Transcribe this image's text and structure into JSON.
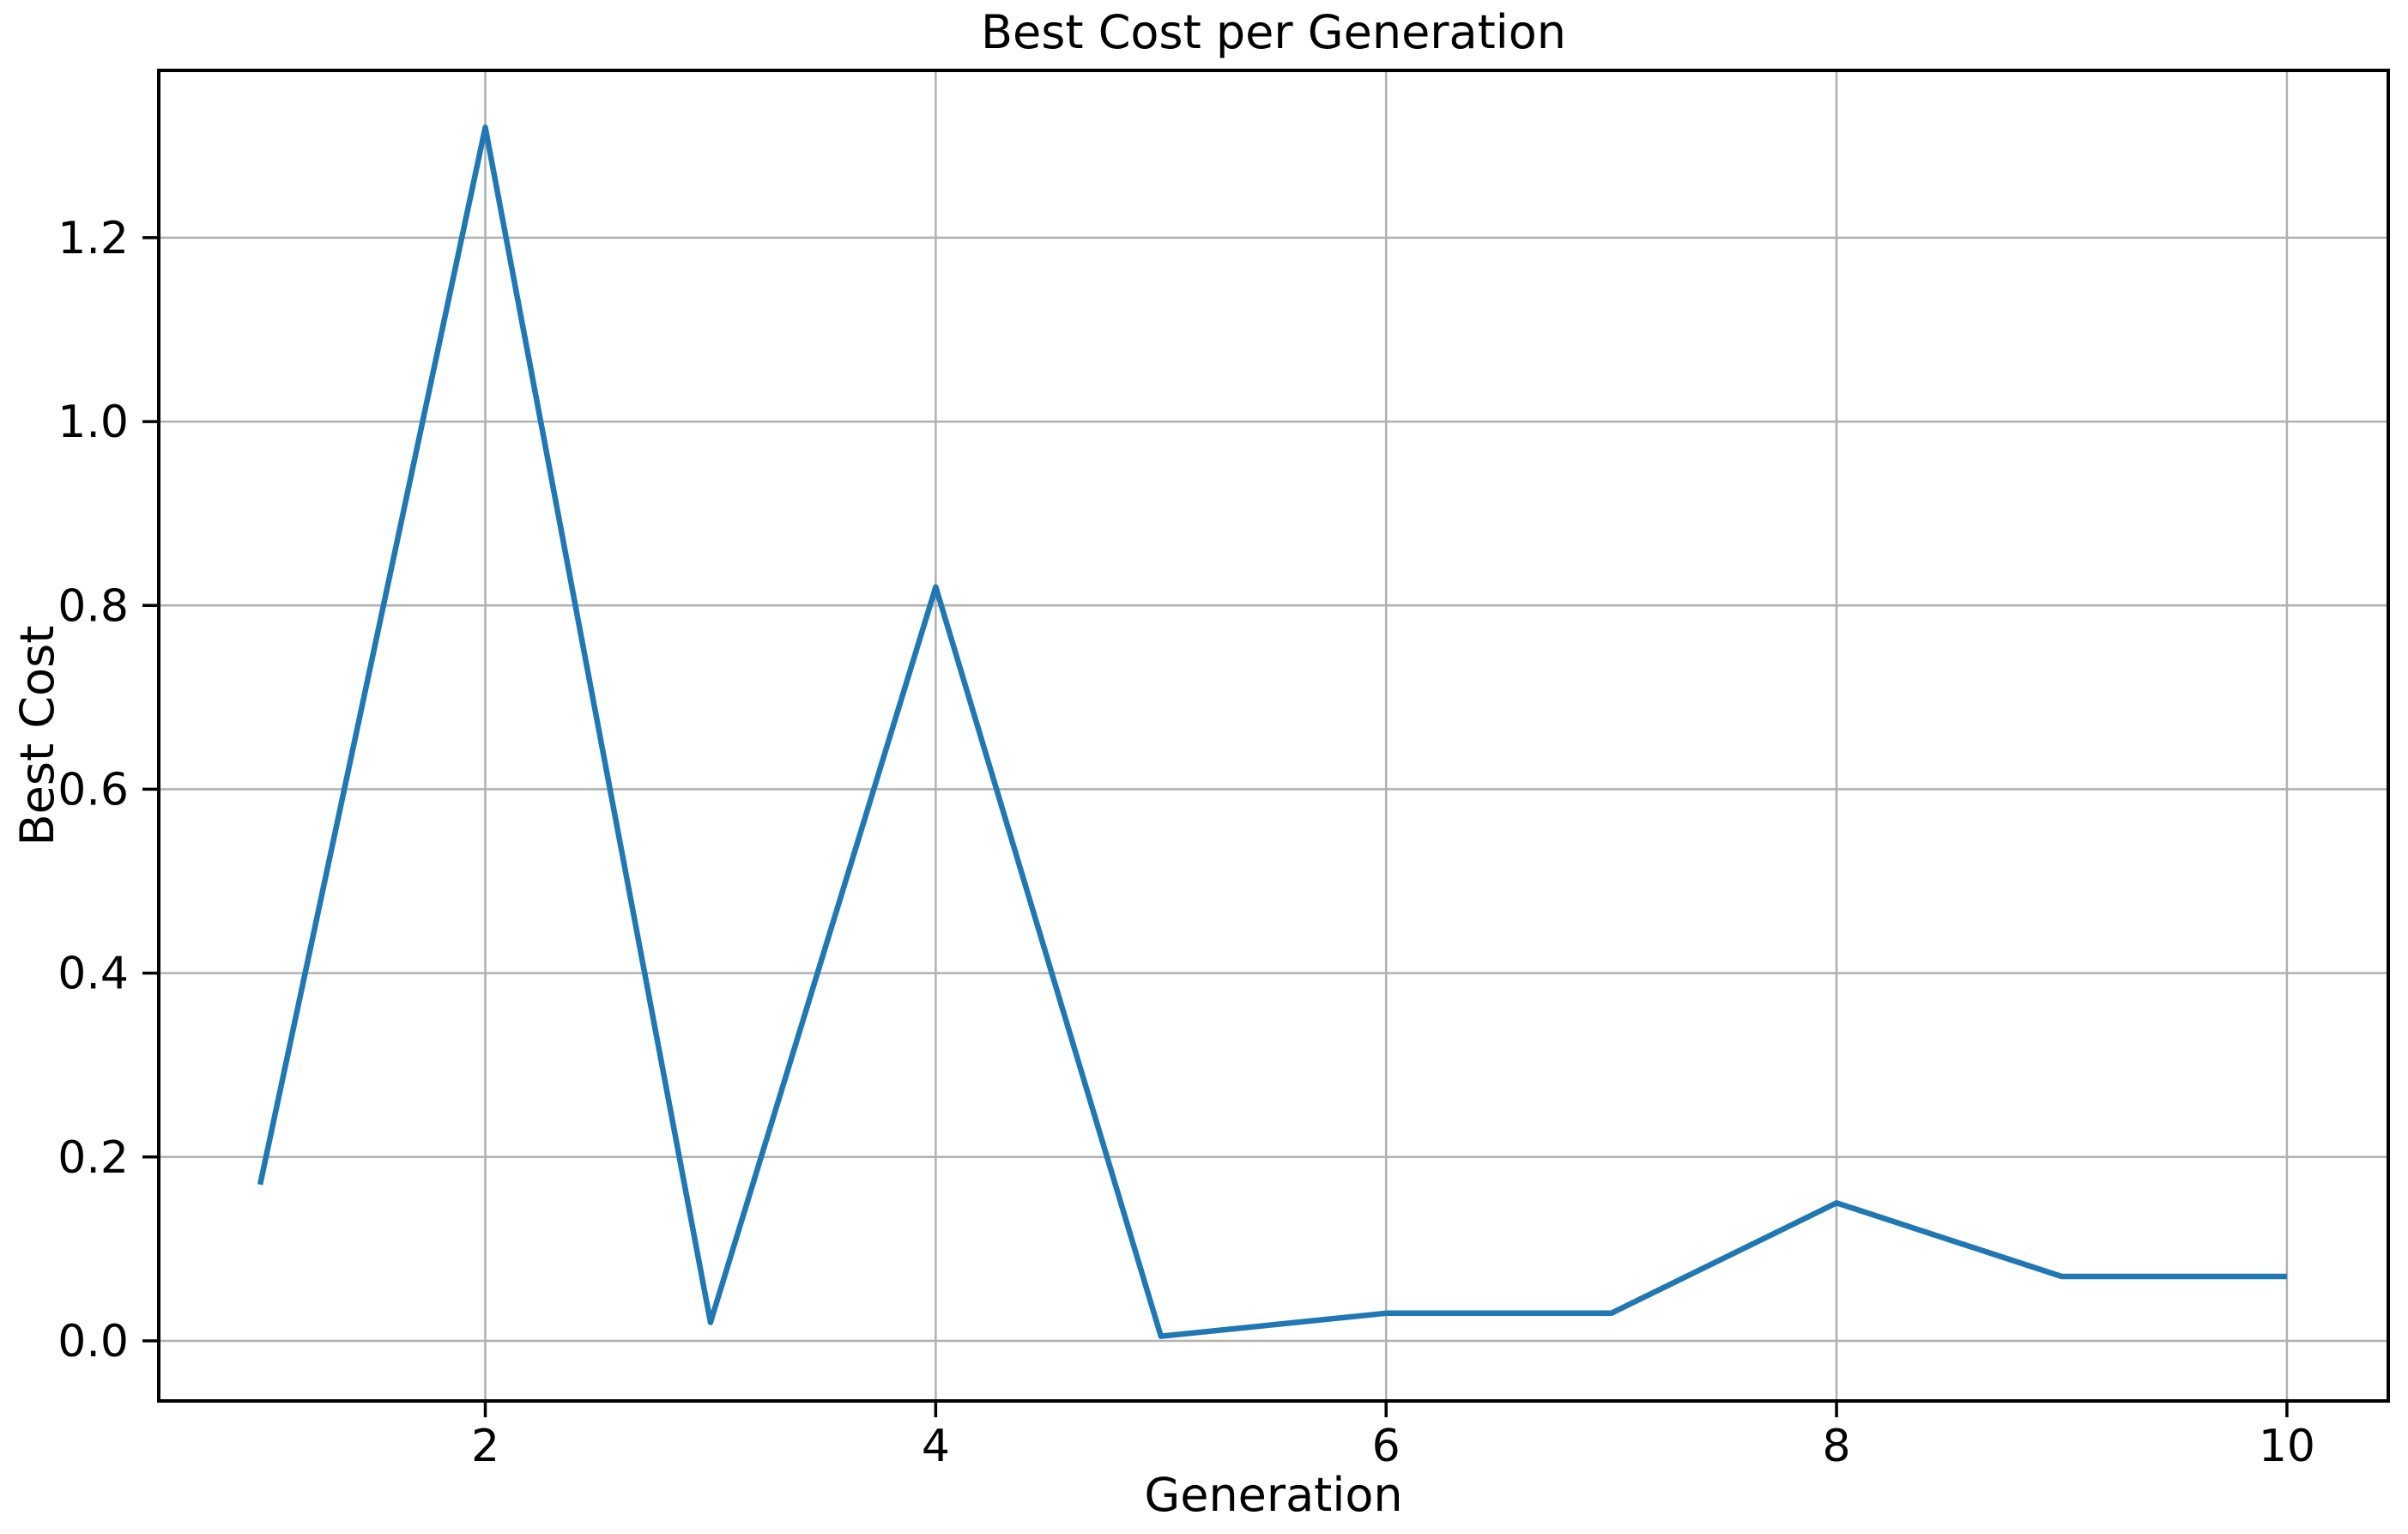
{
  "figure": {
    "title": "Best Cost per Generation",
    "xlabel": "Generation",
    "ylabel": "Best Cost"
  },
  "chart_data": {
    "type": "line",
    "title": "Best Cost per Generation",
    "xlabel": "Generation",
    "ylabel": "Best Cost",
    "x": [
      1,
      2,
      3,
      4,
      5,
      6,
      7,
      8,
      9,
      10
    ],
    "y": [
      0.17,
      1.32,
      0.02,
      0.82,
      0.005,
      0.03,
      0.03,
      0.15,
      0.07,
      0.07
    ],
    "series": [
      {
        "name": "Best Cost",
        "x": [
          1,
          2,
          3,
          4,
          5,
          6,
          7,
          8,
          9,
          10
        ],
        "values": [
          0.17,
          1.32,
          0.02,
          0.82,
          0.005,
          0.03,
          0.03,
          0.15,
          0.07,
          0.07
        ]
      }
    ],
    "xticks": [
      2,
      4,
      6,
      8,
      10
    ],
    "xtick_labels": [
      "2",
      "4",
      "6",
      "8",
      "10"
    ],
    "yticks": [
      0.0,
      0.2,
      0.4,
      0.6,
      0.8,
      1.0,
      1.2
    ],
    "ytick_labels": [
      "0.0",
      "0.2",
      "0.4",
      "0.6",
      "0.8",
      "1.0",
      "1.2"
    ],
    "xlim": [
      0.55,
      10.45
    ],
    "ylim": [
      -0.0654,
      1.382
    ],
    "grid": true,
    "legend_position": "none",
    "line_color": "#1f77b4",
    "grid_color": "#b0b0b0",
    "spine_color": "#000000",
    "tick_color": "#000000",
    "background_color": "#ffffff"
  }
}
